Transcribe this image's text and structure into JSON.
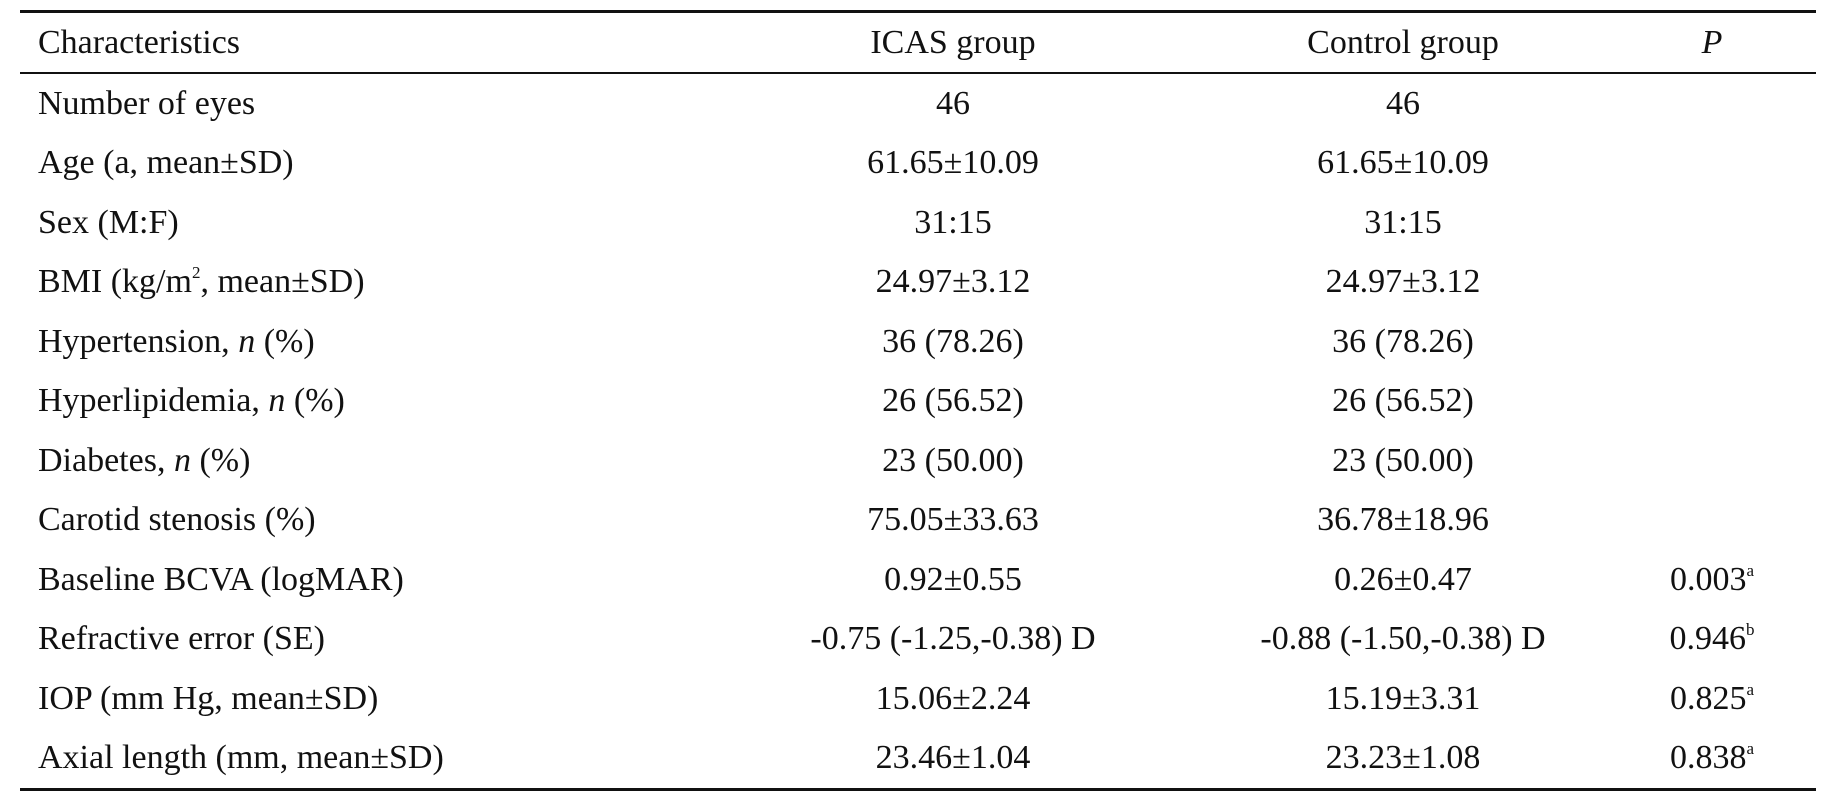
{
  "table": {
    "headers": {
      "characteristics": "Characteristics",
      "icas": "ICAS group",
      "control": "Control group",
      "p": "P"
    },
    "rows": [
      {
        "label": "Number of eyes",
        "icas": "46",
        "control": "46",
        "p": "",
        "p_sup": ""
      },
      {
        "label": "Age (a, mean±SD)",
        "icas": "61.65±10.09",
        "control": "61.65±10.09",
        "p": "",
        "p_sup": ""
      },
      {
        "label": "Sex (M:F)",
        "icas": "31:15",
        "control": "31:15",
        "p": "",
        "p_sup": ""
      },
      {
        "label_pre": "BMI (kg/m",
        "label_sup": "2",
        "label_post": ", mean±SD)",
        "icas": "24.97±3.12",
        "control": "24.97±3.12",
        "p": "",
        "p_sup": ""
      },
      {
        "label_pre": "Hypertension, ",
        "label_em": "n",
        "label_post": " (%)",
        "icas": "36 (78.26)",
        "control": "36 (78.26)",
        "p": "",
        "p_sup": ""
      },
      {
        "label_pre": "Hyperlipidemia, ",
        "label_em": "n",
        "label_post": " (%)",
        "icas": "26 (56.52)",
        "control": "26 (56.52)",
        "p": "",
        "p_sup": ""
      },
      {
        "label_pre": "Diabetes, ",
        "label_em": "n",
        "label_post": " (%)",
        "icas": "23 (50.00)",
        "control": "23 (50.00)",
        "p": "",
        "p_sup": ""
      },
      {
        "label": "Carotid stenosis (%)",
        "icas": "75.05±33.63",
        "control": "36.78±18.96",
        "p": "",
        "p_sup": ""
      },
      {
        "label": "Baseline BCVA (logMAR)",
        "icas": "0.92±0.55",
        "control": "0.26±0.47",
        "p": "0.003",
        "p_sup": "a"
      },
      {
        "label": "Refractive error (SE)",
        "icas": "-0.75 (-1.25,-0.38) D",
        "control": "-0.88 (-1.50,-0.38) D",
        "p": "0.946",
        "p_sup": "b"
      },
      {
        "label": "IOP (mm Hg, mean±SD)",
        "icas": "15.06±2.24",
        "control": "15.19±3.31",
        "p": "0.825",
        "p_sup": "a"
      },
      {
        "label": "Axial length (mm, mean±SD)",
        "icas": "23.46±1.04",
        "control": "23.23±1.08",
        "p": "0.838",
        "p_sup": "a"
      }
    ]
  }
}
